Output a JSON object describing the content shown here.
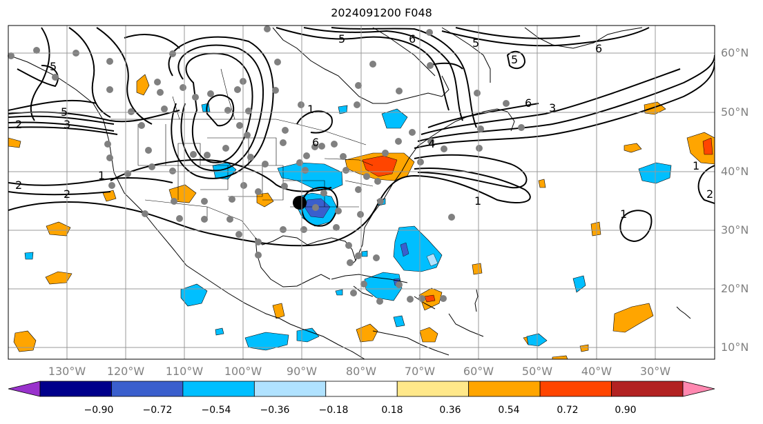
{
  "title": "2024091200 F048",
  "lat_labels": [
    "60°N",
    "50°N",
    "40°N",
    "30°N",
    "20°N",
    "10°N"
  ],
  "lon_labels": [
    "130°W",
    "120°W",
    "110°W",
    "100°W",
    "90°W",
    "80°W",
    "70°W",
    "60°W",
    "50°W",
    "40°W",
    "30°W"
  ],
  "colorbar": {
    "colors": [
      "#9932cc",
      "#00008b",
      "#3a5fcd",
      "#00bfff",
      "#b0e2ff",
      "#ffffff",
      "#ffe88a",
      "#ffa500",
      "#ff4500",
      "#b22222",
      "#ff88b0"
    ],
    "ticks": [
      "−0.90",
      "−0.72",
      "−0.54",
      "−0.36",
      "−0.18",
      "0.18",
      "0.36",
      "0.54",
      "0.72",
      "0.90"
    ]
  },
  "contour_labels": [
    "5",
    "5",
    "5",
    "5",
    "5",
    "6",
    "6",
    "6",
    "6",
    "3",
    "3",
    "2",
    "2",
    "2",
    "2",
    "1",
    "1",
    "1",
    "1",
    "4",
    "1"
  ]
}
